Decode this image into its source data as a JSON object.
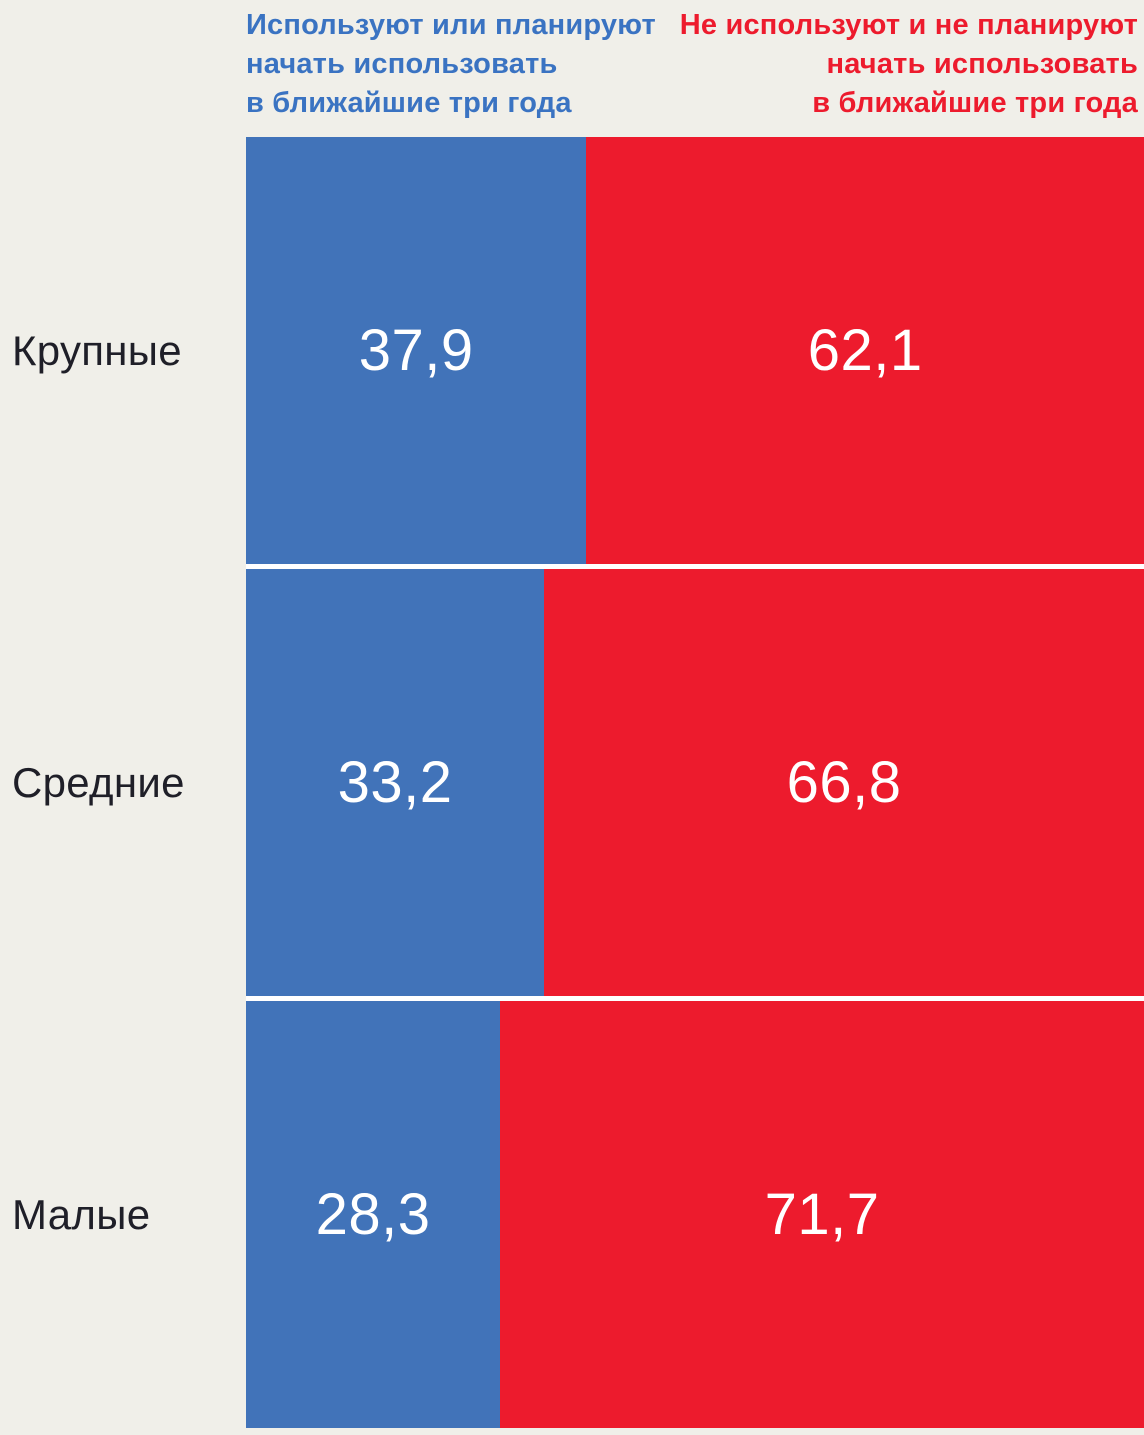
{
  "colors": {
    "background": "#f0efe9",
    "bar_blue": "#4173b9",
    "bar_red": "#ed1b2d",
    "legend_blue_text": "#3a73c2",
    "legend_red_text": "#ed1b2d",
    "category_text": "#1f1f28",
    "value_text": "#ffffff",
    "row_gap": "#ffffff"
  },
  "legend": {
    "used": {
      "lines": [
        "Используют или планируют",
        "начать использовать",
        "в ближайшие три года"
      ]
    },
    "not_used": {
      "lines": [
        "Не используют и не планируют",
        "начать использовать",
        "в ближайшие три года"
      ]
    }
  },
  "chart_data": {
    "type": "bar",
    "orientation": "horizontal",
    "stacked": true,
    "units": "%",
    "xlim": [
      0,
      100
    ],
    "grid": false,
    "legend_position": "top",
    "categories": [
      "Крупные",
      "Средние",
      "Малые"
    ],
    "series": [
      {
        "name": "Используют или планируют начать использовать в ближайшие три года",
        "color": "#4173b9",
        "values": [
          37.9,
          33.2,
          28.3
        ],
        "value_labels": [
          "37,9",
          "33,2",
          "28,3"
        ]
      },
      {
        "name": "Не используют и не планируют начать использовать в ближайшие три года",
        "color": "#ed1b2d",
        "values": [
          62.1,
          66.8,
          71.7
        ],
        "value_labels": [
          "62,1",
          "66,8",
          "71,7"
        ]
      }
    ]
  }
}
